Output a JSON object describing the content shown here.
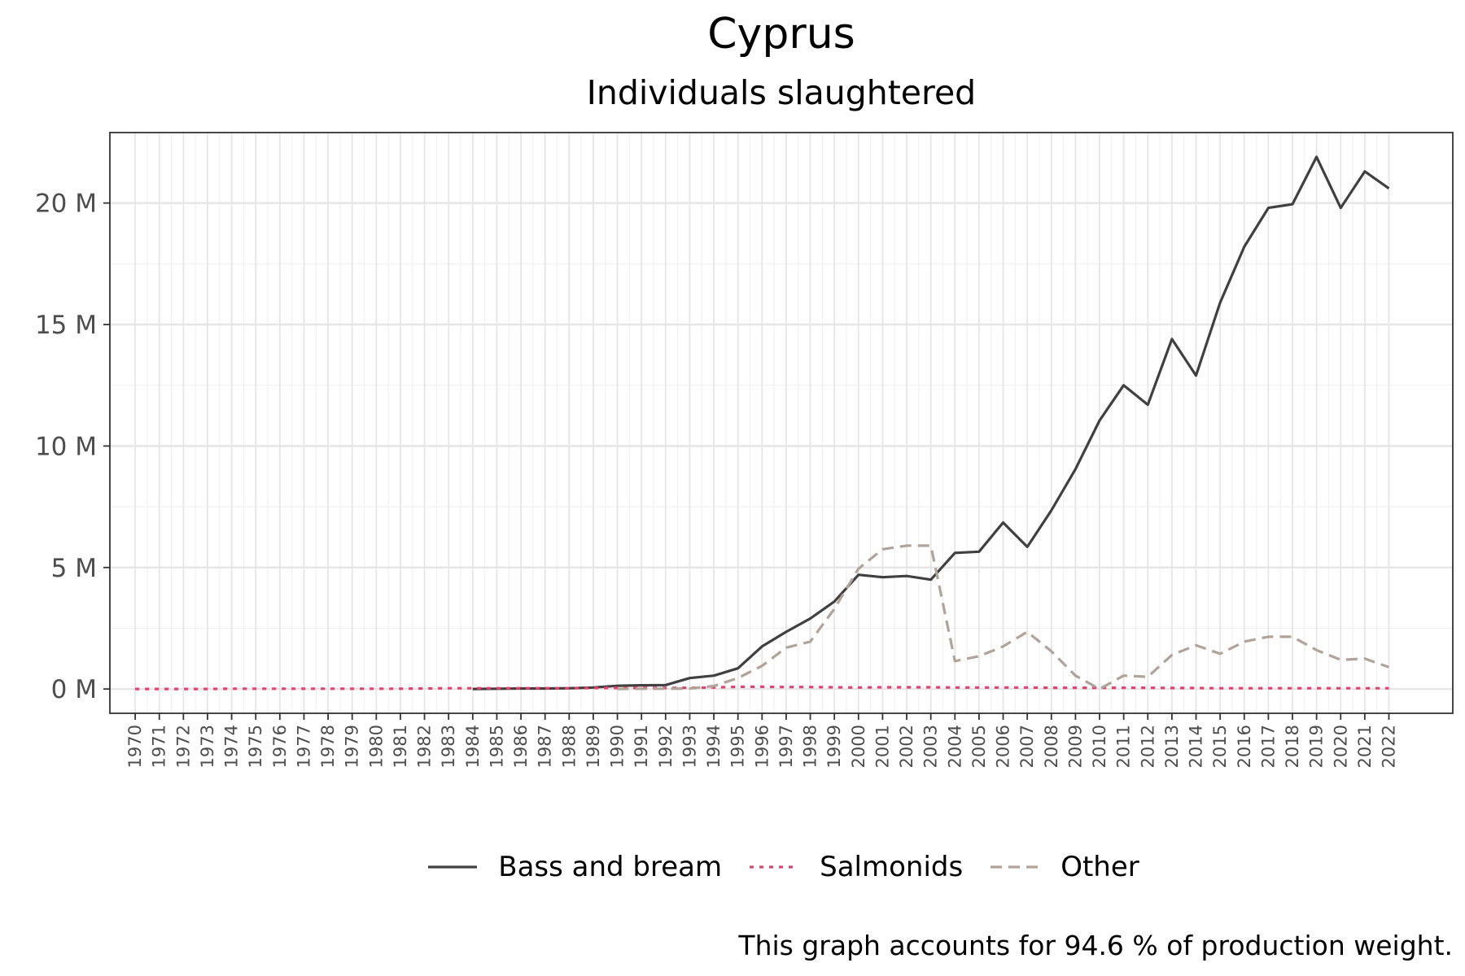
{
  "title": "Cyprus",
  "subtitle": "Individuals slaughtered",
  "caption": "This graph accounts for 94.6 % of production weight.",
  "chart_data": {
    "type": "line",
    "title": "Cyprus",
    "subtitle": "Individuals slaughtered",
    "xlabel": "",
    "ylabel": "",
    "x": [
      1970,
      1971,
      1972,
      1973,
      1974,
      1975,
      1976,
      1977,
      1978,
      1979,
      1980,
      1981,
      1982,
      1983,
      1984,
      1985,
      1986,
      1987,
      1988,
      1989,
      1990,
      1991,
      1992,
      1993,
      1994,
      1995,
      1996,
      1997,
      1998,
      1999,
      2000,
      2001,
      2002,
      2003,
      2004,
      2005,
      2006,
      2007,
      2008,
      2009,
      2010,
      2011,
      2012,
      2013,
      2014,
      2015,
      2016,
      2017,
      2018,
      2019,
      2020,
      2021,
      2022
    ],
    "ylim": [
      -1000000,
      22900000
    ],
    "yticks": [
      0,
      5000000,
      10000000,
      15000000,
      20000000
    ],
    "yticklabels": [
      "0 M",
      "5 M",
      "10 M",
      "15 M",
      "20 M"
    ],
    "grid": true,
    "legend_position": "bottom",
    "series": [
      {
        "name": "Bass and bream",
        "color": "#404040",
        "dash": "solid",
        "values": [
          null,
          null,
          null,
          null,
          null,
          null,
          null,
          null,
          null,
          null,
          null,
          null,
          null,
          null,
          0,
          10000,
          20000,
          20000,
          30000,
          60000,
          130000,
          150000,
          160000,
          450000,
          550000,
          850000,
          1750000,
          2350000,
          2900000,
          3600000,
          4700000,
          4600000,
          4650000,
          4500000,
          5600000,
          5650000,
          6850000,
          5850000,
          7350000,
          9050000,
          11050000,
          12500000,
          11700000,
          14400000,
          12900000,
          15900000,
          18200000,
          19800000,
          19950000,
          21900000,
          19800000,
          21300000,
          20600000
        ]
      },
      {
        "name": "Salmonids",
        "color": "#e0436b",
        "dash": "dotted",
        "values": [
          0,
          0,
          0,
          0,
          10000,
          10000,
          10000,
          10000,
          10000,
          10000,
          10000,
          10000,
          20000,
          30000,
          30000,
          30000,
          30000,
          30000,
          30000,
          40000,
          40000,
          40000,
          40000,
          50000,
          60000,
          90000,
          90000,
          80000,
          80000,
          70000,
          60000,
          70000,
          70000,
          70000,
          60000,
          60000,
          60000,
          60000,
          50000,
          50000,
          50000,
          50000,
          50000,
          40000,
          40000,
          30000,
          30000,
          30000,
          30000,
          30000,
          30000,
          30000,
          30000
        ]
      },
      {
        "name": "Other",
        "color": "#b0a49a",
        "dash": "dashed",
        "values": [
          null,
          null,
          null,
          null,
          null,
          null,
          null,
          null,
          null,
          null,
          null,
          null,
          null,
          null,
          null,
          null,
          null,
          null,
          null,
          null,
          0,
          10000,
          10000,
          20000,
          120000,
          450000,
          950000,
          1700000,
          1950000,
          3300000,
          4950000,
          5750000,
          5900000,
          5900000,
          1150000,
          1350000,
          1750000,
          2350000,
          1550000,
          550000,
          0,
          550000,
          500000,
          1400000,
          1800000,
          1450000,
          1950000,
          2150000,
          2150000,
          1600000,
          1200000,
          1250000,
          900000
        ]
      }
    ]
  }
}
